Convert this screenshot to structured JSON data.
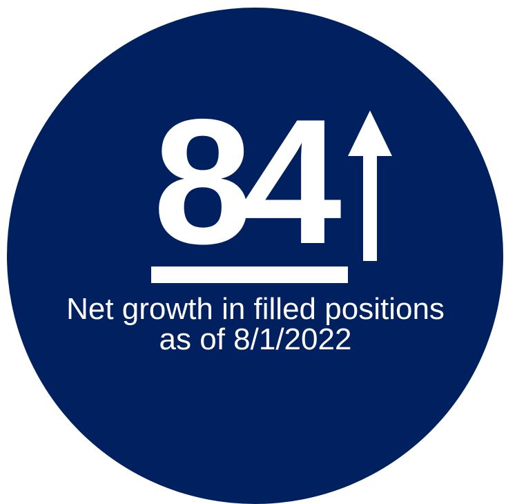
{
  "stat": {
    "value": "84",
    "direction": "up-arrow-icon",
    "caption_line1": "Net growth in filled positions",
    "caption_line2": "as of 8/1/2022"
  },
  "colors": {
    "circle": "#01205f",
    "foreground": "#ffffff",
    "background": "#ffffff"
  }
}
